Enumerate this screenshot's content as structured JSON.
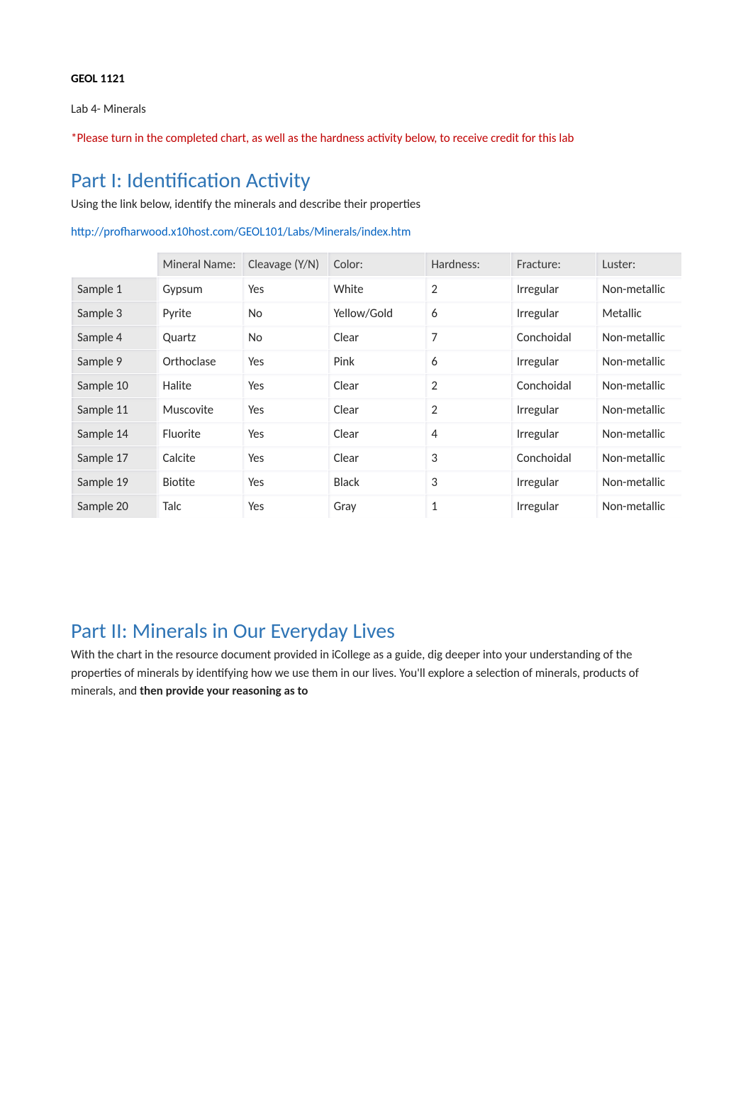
{
  "course_code": "GEOL 1121",
  "lab_title": "Lab 4- Minerals",
  "warning_text": "*Please turn in the completed chart, as well as the hardness activity below, to receive credit for this lab",
  "colors": {
    "heading": "#2e74b5",
    "warning": "#c00000",
    "link": "#0563c1",
    "body_text": "#222222",
    "table_header_bg": "#e9e9e9",
    "table_row_label_bg": "#e9e9e9",
    "background": "#ffffff",
    "table_border": "#ffffff"
  },
  "typography": {
    "body_fontsize": 17,
    "heading_fontsize": 30,
    "font_family": "Calibri"
  },
  "part1": {
    "heading": "Part I: Identification Activity",
    "desc": "Using the link below, identify the minerals and describe their properties",
    "link": "http://profharwood.x10host.com/GEOL101/Labs/Minerals/index.htm"
  },
  "table": {
    "columns": [
      "",
      "Mineral Name:",
      "Cleavage (Y/N)",
      "Color:",
      "Hardness:",
      "Fracture:",
      "Luster:"
    ],
    "col_widths_pct": [
      14,
      14,
      14,
      16,
      14,
      14,
      14
    ],
    "rows": [
      {
        "label": "Sample 1",
        "mineral": "Gypsum",
        "cleavage": "Yes",
        "color": "White",
        "hardness": "2",
        "fracture": "Irregular",
        "luster": "Non-metallic"
      },
      {
        "label": "Sample 3",
        "mineral": "Pyrite",
        "cleavage": "No",
        "color": "Yellow/Gold",
        "hardness": "6",
        "fracture": "Irregular",
        "luster": "Metallic"
      },
      {
        "label": "Sample 4",
        "mineral": "Quartz",
        "cleavage": "No",
        "color": "Clear",
        "hardness": "7",
        "fracture": "Conchoidal",
        "luster": "Non-metallic"
      },
      {
        "label": "Sample 9",
        "mineral": "Orthoclase",
        "cleavage": "Yes",
        "color": "Pink",
        "hardness": "6",
        "fracture": "Irregular",
        "luster": "Non-metallic"
      },
      {
        "label": "Sample 10",
        "mineral": "Halite",
        "cleavage": "Yes",
        "color": "Clear",
        "hardness": "2",
        "fracture": "Conchoidal",
        "luster": "Non-metallic"
      },
      {
        "label": "Sample 11",
        "mineral": "Muscovite",
        "cleavage": "Yes",
        "color": "Clear",
        "hardness": "2",
        "fracture": "Irregular",
        "luster": "Non-metallic"
      },
      {
        "label": "Sample 14",
        "mineral": "Fluorite",
        "cleavage": "Yes",
        "color": "Clear",
        "hardness": "4",
        "fracture": "Irregular",
        "luster": "Non-metallic"
      },
      {
        "label": "Sample 17",
        "mineral": "Calcite",
        "cleavage": "Yes",
        "color": "Clear",
        "hardness": "3",
        "fracture": "Conchoidal",
        "luster": "Non-metallic"
      },
      {
        "label": "Sample 19",
        "mineral": "Biotite",
        "cleavage": "Yes",
        "color": "Black",
        "hardness": "3",
        "fracture": "Irregular",
        "luster": "Non-metallic"
      },
      {
        "label": "Sample 20",
        "mineral": "Talc",
        "cleavage": "Yes",
        "color": "Gray",
        "hardness": "1",
        "fracture": "Irregular",
        "luster": "Non-metallic"
      }
    ]
  },
  "part2": {
    "heading": "Part II: Minerals in Our Everyday Lives",
    "desc_plain": "With the chart in the resource document provided in iCollege as a guide, dig deeper into your understanding of the properties of minerals by identifying how we use them in our lives. You'll explore a selection of minerals, products of minerals, and ",
    "desc_bold": "then provide your reasoning as to"
  }
}
